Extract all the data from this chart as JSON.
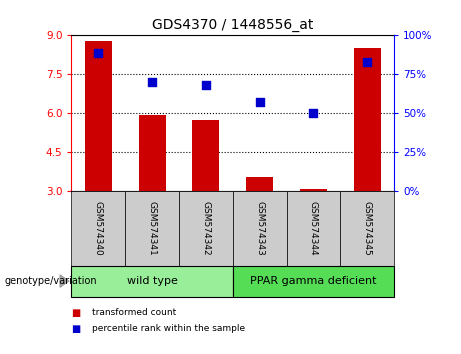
{
  "title": "GDS4370 / 1448556_at",
  "samples": [
    "GSM574340",
    "GSM574341",
    "GSM574342",
    "GSM574343",
    "GSM574344",
    "GSM574345"
  ],
  "transformed_count": [
    8.8,
    5.95,
    5.75,
    3.55,
    3.1,
    8.5
  ],
  "percentile_rank": [
    89,
    70,
    68,
    57,
    50,
    83
  ],
  "ylim_left": [
    3,
    9
  ],
  "ylim_right": [
    0,
    100
  ],
  "yticks_left": [
    3,
    4.5,
    6,
    7.5,
    9
  ],
  "yticks_right": [
    0,
    25,
    50,
    75,
    100
  ],
  "bar_color": "#cc0000",
  "dot_color": "#0000cc",
  "groups": [
    {
      "label": "wild type",
      "indices": [
        0,
        1,
        2
      ],
      "color": "#99ee99"
    },
    {
      "label": "PPAR gamma deficient",
      "indices": [
        3,
        4,
        5
      ],
      "color": "#55dd55"
    }
  ],
  "group_label": "genotype/variation",
  "legend_items": [
    {
      "label": "transformed count",
      "color": "#cc0000"
    },
    {
      "label": "percentile rank within the sample",
      "color": "#0000cc"
    }
  ],
  "bar_width": 0.5,
  "dot_size": 30,
  "grid_linestyle": ":",
  "grid_linewidth": 0.8,
  "tick_label_area_color": "#cccccc",
  "fig_width": 4.61,
  "fig_height": 3.54,
  "dpi": 100
}
